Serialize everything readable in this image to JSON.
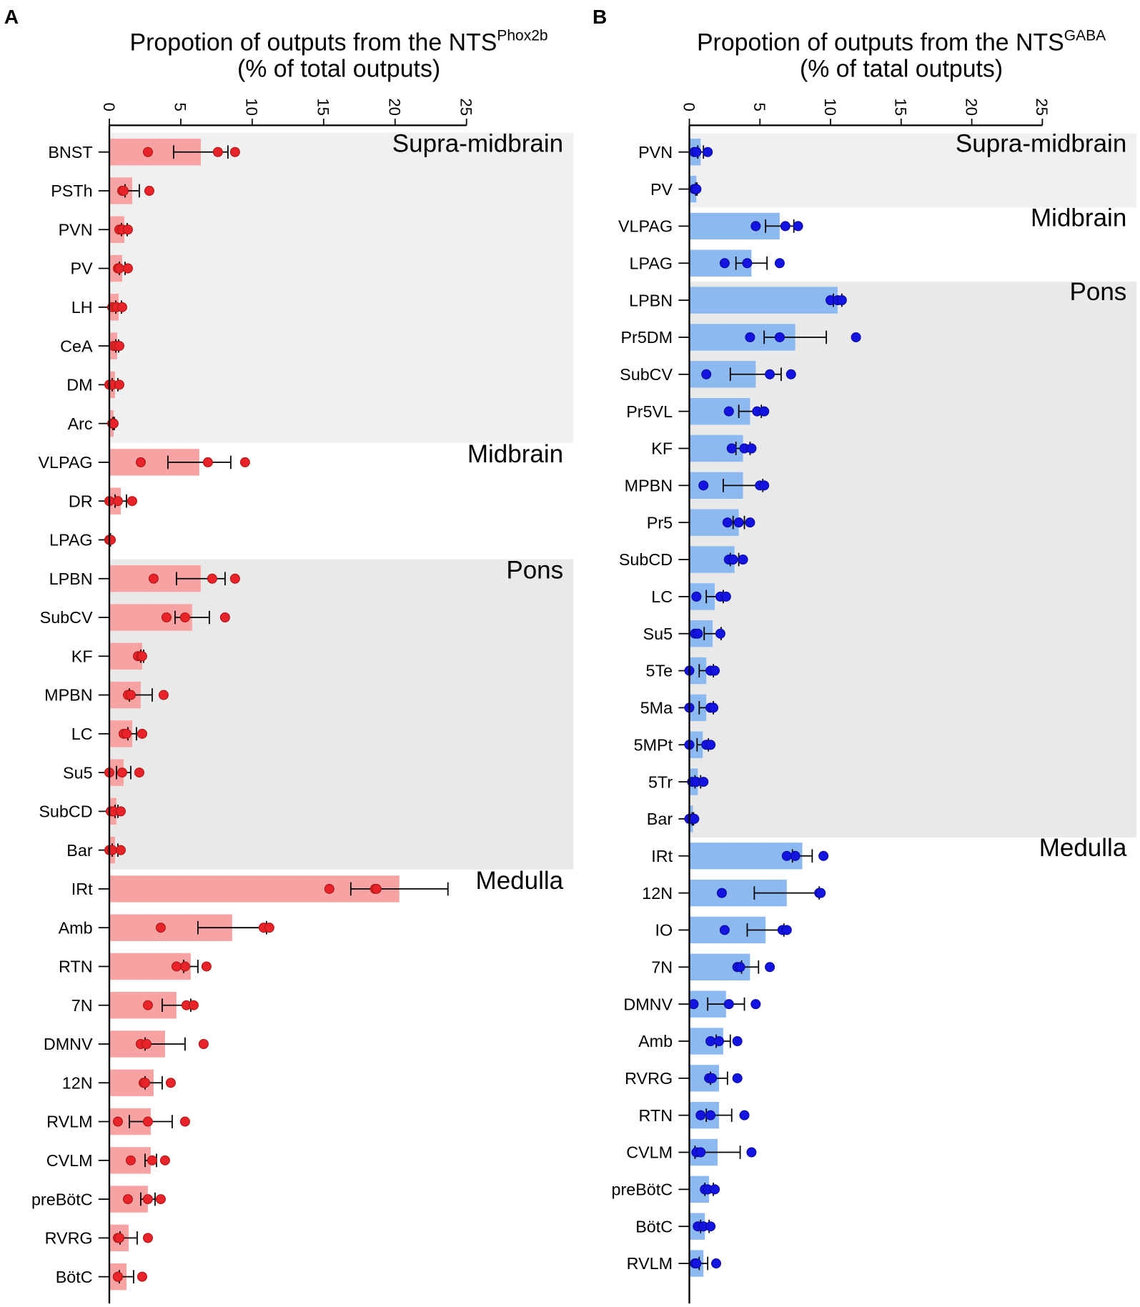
{
  "chart_data": [
    {
      "type": "bar",
      "panel": "A",
      "title": [
        "Propotion of outputs from the NTS",
        "(% of total outputs)"
      ],
      "title_superscript": "Phox2b",
      "xlim": [
        0,
        25
      ],
      "xticks": [
        0,
        5,
        10,
        15,
        20,
        25
      ],
      "bar_color": "#f8a3a3",
      "point_color": "#e8242a",
      "groups": [
        {
          "name": "Supra-midbrain",
          "categories": [
            "BNST",
            "PSTh",
            "PVN",
            "PV",
            "LH",
            "CeA",
            "DM",
            "Arc"
          ],
          "values": [
            6.4,
            1.6,
            1.05,
            0.9,
            0.65,
            0.55,
            0.4,
            0.3
          ],
          "errors": [
            1.9,
            0.5,
            0.2,
            0.2,
            0.2,
            0.1,
            0.2,
            0.05
          ],
          "points": [
            [
              2.7,
              7.6,
              8.8
            ],
            [
              0.9,
              1.0,
              2.8
            ],
            [
              0.7,
              0.9,
              1.3
            ],
            [
              0.6,
              0.7,
              1.3
            ],
            [
              0.2,
              0.5,
              0.9
            ],
            [
              0.3,
              0.5,
              0.7
            ],
            [
              0,
              0.2,
              0.7
            ],
            [
              0.2,
              0.25,
              0.3
            ]
          ]
        },
        {
          "name": "Midbrain",
          "categories": [
            "VLPAG",
            "DR",
            "LPAG"
          ],
          "values": [
            6.3,
            0.8,
            0.05
          ],
          "errors": [
            2.2,
            0.4,
            0.03
          ],
          "points": [
            [
              2.2,
              6.9,
              9.5
            ],
            [
              0,
              0.6,
              1.6
            ],
            [
              0,
              0,
              0.1
            ]
          ]
        },
        {
          "name": "Pons",
          "categories": [
            "LPBN",
            "SubCV",
            "KF",
            "MPBN",
            "LC",
            "Su5",
            "SubCD",
            "Bar"
          ],
          "values": [
            6.4,
            5.8,
            2.3,
            2.2,
            1.6,
            1.0,
            0.5,
            0.4
          ],
          "errors": [
            1.7,
            1.2,
            0.1,
            0.8,
            0.3,
            0.5,
            0.1,
            0.2
          ],
          "points": [
            [
              3.1,
              7.2,
              8.8
            ],
            [
              4.0,
              5.3,
              8.1
            ],
            [
              2.0,
              2.2,
              2.3
            ],
            [
              1.3,
              1.5,
              3.8
            ],
            [
              1.0,
              1.2,
              2.3
            ],
            [
              0,
              0.9,
              2.1
            ],
            [
              0.1,
              0.3,
              0.8
            ],
            [
              0,
              0.2,
              0.8
            ]
          ]
        },
        {
          "name": "Medulla",
          "categories": [
            "IRt",
            "Amb",
            "RTN",
            "7N",
            "DMNV",
            "12N",
            "RVLM",
            "CVLM",
            "preBötC",
            "RVRG",
            "BötC"
          ],
          "values": [
            20.3,
            8.6,
            5.7,
            4.7,
            3.9,
            3.1,
            2.9,
            2.9,
            2.7,
            1.35,
            1.2
          ],
          "errors": [
            3.4,
            2.4,
            0.5,
            1.0,
            1.4,
            0.6,
            1.5,
            0.4,
            0.5,
            0.6,
            0.5
          ],
          "points": [
            [
              15.4,
              18.6,
              18.7
            ],
            [
              3.6,
              10.8,
              11.2
            ],
            [
              4.7,
              5.3,
              6.8
            ],
            [
              2.7,
              5.4,
              5.9
            ],
            [
              2.2,
              2.6,
              6.6
            ],
            [
              2.4,
              2.5,
              4.3
            ],
            [
              0.6,
              2.7,
              5.3
            ],
            [
              1.5,
              3.0,
              3.9
            ],
            [
              1.3,
              2.7,
              3.6
            ],
            [
              0.6,
              0.7,
              2.7
            ],
            [
              0.6,
              0.6,
              2.3
            ]
          ]
        }
      ]
    },
    {
      "type": "bar",
      "panel": "B",
      "title": [
        "Propotion of outputs from the NTS",
        "(% of tatal outputs)"
      ],
      "title_superscript": "GABA",
      "xlim": [
        0,
        25
      ],
      "xticks": [
        0,
        5,
        10,
        15,
        20,
        25
      ],
      "bar_color": "#8cbaf0",
      "point_color": "#1414e0",
      "groups": [
        {
          "name": "Supra-midbrain",
          "categories": [
            "PVN",
            "PV"
          ],
          "values": [
            0.8,
            0.5
          ],
          "errors": [
            0.2,
            0.05
          ],
          "points": [
            [
              0.35,
              0.5,
              1.3
            ],
            [
              0.35,
              0.4,
              0.5
            ]
          ]
        },
        {
          "name": "Midbrain",
          "categories": [
            "VLPAG",
            "LPAG"
          ],
          "values": [
            6.4,
            4.4
          ],
          "errors": [
            1.0,
            1.1
          ],
          "points": [
            [
              4.7,
              6.8,
              7.7
            ],
            [
              2.5,
              4.1,
              6.4
            ]
          ]
        },
        {
          "name": "Pons",
          "categories": [
            "LPBN",
            "Pr5DM",
            "SubCV",
            "Pr5VL",
            "KF",
            "MPBN",
            "Pr5",
            "SubCD",
            "LC",
            "Su5",
            "5Te",
            "5Ma",
            "5MPt",
            "5Tr",
            "Bar"
          ],
          "values": [
            10.5,
            7.5,
            4.7,
            4.3,
            3.8,
            3.8,
            3.5,
            3.2,
            1.8,
            1.65,
            1.2,
            1.2,
            0.95,
            0.6,
            0.25
          ],
          "errors": [
            0.3,
            2.2,
            1.8,
            0.8,
            0.5,
            1.4,
            0.4,
            0.3,
            0.6,
            0.6,
            0.5,
            0.5,
            0.4,
            0.2,
            0.05
          ],
          "points": [
            [
              10.0,
              10.5,
              10.8
            ],
            [
              4.3,
              6.4,
              11.8
            ],
            [
              1.2,
              5.7,
              7.2
            ],
            [
              2.8,
              4.8,
              5.3
            ],
            [
              3.0,
              3.9,
              4.4
            ],
            [
              1.0,
              5.0,
              5.3
            ],
            [
              2.7,
              3.5,
              4.3
            ],
            [
              2.8,
              3.1,
              3.8
            ],
            [
              0.5,
              2.2,
              2.6
            ],
            [
              0.4,
              0.6,
              2.2
            ],
            [
              0,
              1.5,
              1.8
            ],
            [
              0,
              1.5,
              1.7
            ],
            [
              0,
              1.2,
              1.5
            ],
            [
              0.2,
              0.5,
              1.0
            ],
            [
              0,
              0.2,
              0.35
            ]
          ]
        },
        {
          "name": "Medulla",
          "categories": [
            "IRt",
            "12N",
            "IO",
            "7N",
            "DMNV",
            "Amb",
            "RVRG",
            "RTN",
            "CVLM",
            "preBötC",
            "BötC",
            "RVLM"
          ],
          "values": [
            8.0,
            6.9,
            5.4,
            4.3,
            2.6,
            2.4,
            2.1,
            2.1,
            2.0,
            1.4,
            1.1,
            1.0
          ],
          "errors": [
            0.7,
            2.3,
            1.3,
            0.6,
            1.3,
            0.5,
            0.6,
            0.9,
            1.6,
            0.3,
            0.3,
            0.3
          ],
          "points": [
            [
              6.9,
              7.5,
              9.5
            ],
            [
              2.3,
              9.2,
              9.3
            ],
            [
              2.5,
              6.6,
              6.9
            ],
            [
              3.4,
              3.6,
              5.7
            ],
            [
              0.3,
              2.8,
              4.7
            ],
            [
              1.5,
              2.1,
              3.4
            ],
            [
              1.4,
              1.6,
              3.4
            ],
            [
              0.8,
              1.5,
              3.9
            ],
            [
              0.5,
              0.8,
              4.4
            ],
            [
              1.1,
              1.3,
              1.8
            ],
            [
              0.6,
              1.0,
              1.5
            ],
            [
              0.4,
              0.5,
              1.9
            ]
          ]
        }
      ]
    }
  ]
}
